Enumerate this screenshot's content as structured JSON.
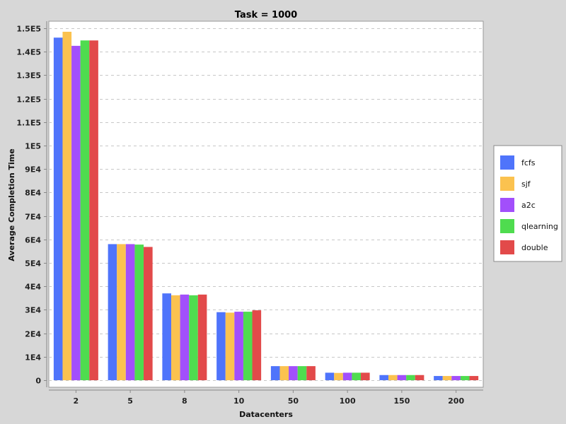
{
  "chart_data": {
    "type": "bar",
    "title": "Task = 1000",
    "xlabel": "Datacenters",
    "ylabel": "Average Completion Time",
    "categories": [
      "2",
      "5",
      "8",
      "10",
      "50",
      "100",
      "150",
      "200"
    ],
    "ylim": [
      -3000,
      153000
    ],
    "yticks": [
      {
        "value": 0,
        "label": "0"
      },
      {
        "value": 10000,
        "label": "1E4"
      },
      {
        "value": 20000,
        "label": "2E4"
      },
      {
        "value": 30000,
        "label": "3E4"
      },
      {
        "value": 40000,
        "label": "4E4"
      },
      {
        "value": 50000,
        "label": "5E4"
      },
      {
        "value": 60000,
        "label": "6E4"
      },
      {
        "value": 70000,
        "label": "7E4"
      },
      {
        "value": 80000,
        "label": "8E4"
      },
      {
        "value": 90000,
        "label": "9E4"
      },
      {
        "value": 100000,
        "label": "1E5"
      },
      {
        "value": 110000,
        "label": "1.1E5"
      },
      {
        "value": 120000,
        "label": "1.2E5"
      },
      {
        "value": 130000,
        "label": "1.3E5"
      },
      {
        "value": 140000,
        "label": "1.4E5"
      },
      {
        "value": 150000,
        "label": "1.5E5"
      }
    ],
    "grid": true,
    "legend_position": "right",
    "series": [
      {
        "name": "fcfs",
        "color": "#4f74fb",
        "values": [
          146000,
          58000,
          37000,
          29000,
          6000,
          3200,
          2200,
          1800
        ]
      },
      {
        "name": "sjf",
        "color": "#fbc24f",
        "values": [
          148500,
          58000,
          36200,
          28800,
          6000,
          3100,
          2200,
          1800
        ]
      },
      {
        "name": "a2c",
        "color": "#a24ffb",
        "values": [
          142500,
          58000,
          36500,
          29200,
          6000,
          3200,
          2200,
          1800
        ]
      },
      {
        "name": "qlearning",
        "color": "#4fdc4f",
        "values": [
          144800,
          57800,
          36200,
          29200,
          6000,
          3200,
          2200,
          1800
        ]
      },
      {
        "name": "double",
        "color": "#e24a4a",
        "values": [
          144800,
          56800,
          36500,
          29800,
          6000,
          3200,
          2200,
          1800
        ]
      }
    ]
  }
}
